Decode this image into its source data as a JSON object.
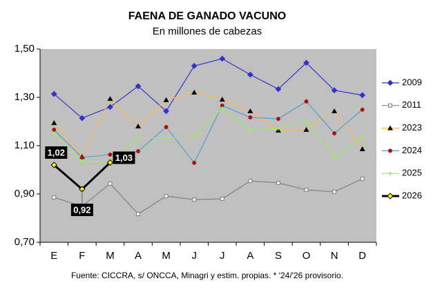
{
  "chart_data": {
    "type": "line",
    "title": "FAENA DE GANADO VACUNO",
    "subtitle": "En millones de cabezas",
    "source": "Fuente: CICCRA, s/ ONCCA, Minagri y estim. propias. * '24/'26 provisorio.",
    "categories": [
      "E",
      "F",
      "M",
      "A",
      "M",
      "J",
      "J",
      "A",
      "S",
      "O",
      "N",
      "D"
    ],
    "ylim": [
      0.7,
      1.5
    ],
    "yticks": [
      {
        "value": 0.7,
        "label": "0,70"
      },
      {
        "value": 0.9,
        "label": "0,90"
      },
      {
        "value": 1.1,
        "label": "1,10"
      },
      {
        "value": 1.3,
        "label": "1,30"
      },
      {
        "value": 1.5,
        "label": "1,50"
      }
    ],
    "grid": false,
    "plot_background": "#c0c0c0",
    "legend": "right",
    "series": [
      {
        "name": "2009",
        "color": "#3333cc",
        "marker_color": "#3333cc",
        "values": [
          1.314,
          1.214,
          1.26,
          1.346,
          1.243,
          1.43,
          1.46,
          1.394,
          1.334,
          1.443,
          1.329,
          1.309
        ]
      },
      {
        "name": "2011",
        "color": "#808080",
        "marker_color": "#808080",
        "values": [
          0.886,
          0.849,
          0.943,
          0.817,
          0.891,
          0.877,
          0.88,
          0.954,
          0.946,
          0.917,
          0.909,
          0.963
        ]
      },
      {
        "name": "2023",
        "color": "#ffb84d",
        "marker_color": "#000000",
        "values": [
          1.194,
          1.054,
          1.294,
          1.18,
          1.289,
          1.32,
          1.291,
          1.243,
          1.163,
          1.166,
          1.243,
          1.086
        ]
      },
      {
        "name": "2024",
        "color": "#4f9fcf",
        "marker_color": "#cc0000",
        "values": [
          1.166,
          1.051,
          1.063,
          1.077,
          1.177,
          1.029,
          1.266,
          1.217,
          1.211,
          1.283,
          1.151,
          1.249
        ]
      },
      {
        "name": "2025",
        "color": "#99ee66",
        "marker_color": "#99ee66",
        "values": [
          1.149,
          1.034,
          1.034,
          1.134,
          1.131,
          1.137,
          1.254,
          1.166,
          1.171,
          1.2,
          1.054,
          1.134
        ]
      },
      {
        "name": "2026",
        "color": "#000000",
        "marker_color": "#ffff00",
        "values": [
          1.02,
          0.92,
          1.03,
          null,
          null,
          null,
          null,
          null,
          null,
          null,
          null,
          null
        ],
        "value_labels": [
          "1,02",
          "0,92",
          "1,03",
          null,
          null,
          null,
          null,
          null,
          null,
          null,
          null,
          null
        ]
      }
    ]
  }
}
